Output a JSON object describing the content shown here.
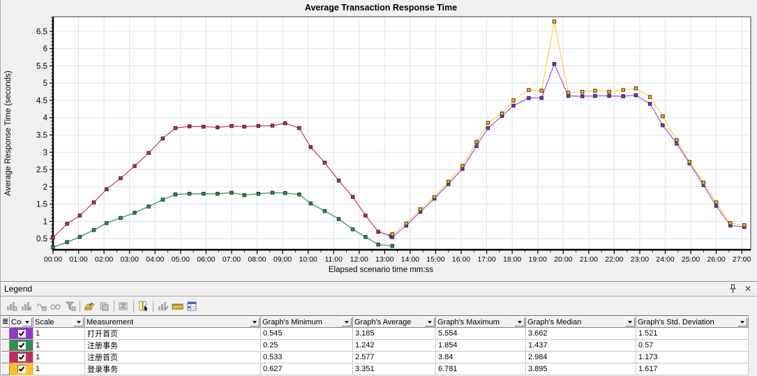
{
  "chart_data": {
    "type": "line",
    "title": "Average Transaction Response Time",
    "xlabel": "Elapsed scenario time mm:ss",
    "ylabel": "Average Response Time (seconds)",
    "grid": true,
    "ylim": [
      0.18,
      6.92
    ],
    "y_ticks": [
      0.5,
      1,
      1.5,
      2,
      2.5,
      3,
      3.5,
      4,
      4.5,
      5,
      5.5,
      6,
      6.5
    ],
    "x_ticks": [
      "00:00",
      "01:00",
      "02:00",
      "03:00",
      "04:00",
      "05:00",
      "06:00",
      "07:00",
      "08:00",
      "09:00",
      "10:00",
      "11:00",
      "12:00",
      "13:00",
      "14:00",
      "15:00",
      "16:00",
      "17:00",
      "18:00",
      "19:00",
      "20:00",
      "21:00",
      "22:00",
      "23:00",
      "24:00",
      "25:00",
      "26:00",
      "27:00"
    ],
    "legend_position": "table-below",
    "series": [
      {
        "name": "打开首页",
        "line_color": "#9a52d6",
        "marker_color": "#8e2fc9",
        "marker_border": "#30104f",
        "x": [
          13.3,
          13.85,
          14.4,
          14.95,
          15.5,
          16.05,
          16.6,
          17.05,
          17.6,
          18.05,
          18.65,
          19.15,
          19.65,
          20.2,
          20.75,
          21.25,
          21.8,
          22.35,
          22.85,
          23.4,
          23.9,
          24.45,
          24.95,
          25.5,
          26.0,
          26.55,
          27.1
        ],
        "y": [
          0.545,
          0.88,
          1.28,
          1.66,
          2.08,
          2.52,
          3.18,
          3.7,
          4.05,
          4.35,
          4.57,
          4.57,
          5.554,
          4.63,
          4.62,
          4.63,
          4.63,
          4.62,
          4.65,
          4.4,
          3.78,
          3.25,
          2.68,
          2.05,
          1.45,
          0.88,
          0.84
        ]
      },
      {
        "name": "注册事务",
        "line_color": "#2e8b57",
        "marker_color": "#2e9153",
        "marker_border": "#083b1d",
        "x": [
          0,
          0.55,
          1.05,
          1.6,
          2.1,
          2.65,
          3.2,
          3.75,
          4.3,
          4.8,
          5.35,
          5.9,
          6.45,
          7.0,
          7.5,
          8.05,
          8.6,
          9.1,
          9.65,
          10.1,
          10.65,
          11.2,
          11.75,
          12.25,
          12.75,
          13.3
        ],
        "y": [
          0.25,
          0.4,
          0.55,
          0.75,
          0.95,
          1.1,
          1.25,
          1.43,
          1.63,
          1.78,
          1.8,
          1.8,
          1.8,
          1.83,
          1.76,
          1.8,
          1.83,
          1.82,
          1.78,
          1.52,
          1.3,
          1.07,
          0.77,
          0.55,
          0.33,
          0.29
        ]
      },
      {
        "name": "注册首页",
        "line_color": "#bb3366",
        "marker_color": "#c62b5e",
        "marker_border": "#47101e",
        "x": [
          0,
          0.55,
          1.05,
          1.6,
          2.1,
          2.65,
          3.2,
          3.75,
          4.3,
          4.8,
          5.35,
          5.9,
          6.45,
          7.0,
          7.5,
          8.05,
          8.6,
          9.1,
          9.65,
          10.1,
          10.65,
          11.2,
          11.75,
          12.25,
          12.75,
          13.25
        ],
        "y": [
          0.533,
          0.93,
          1.17,
          1.55,
          1.93,
          2.25,
          2.6,
          2.98,
          3.4,
          3.7,
          3.75,
          3.74,
          3.72,
          3.76,
          3.74,
          3.76,
          3.77,
          3.84,
          3.7,
          3.15,
          2.7,
          2.18,
          1.71,
          1.17,
          0.7,
          0.58
        ]
      },
      {
        "name": "登录事务",
        "line_color": "#ffcf40",
        "marker_color": "#ffc31e",
        "marker_border": "#3d3000",
        "x": [
          13.3,
          13.85,
          14.4,
          14.95,
          15.5,
          16.05,
          16.6,
          17.05,
          17.6,
          18.05,
          18.65,
          19.15,
          19.65,
          20.2,
          20.75,
          21.25,
          21.8,
          22.35,
          22.85,
          23.4,
          23.9,
          24.45,
          24.95,
          25.5,
          26.0,
          26.55,
          27.1
        ],
        "y": [
          0.627,
          0.94,
          1.35,
          1.7,
          2.15,
          2.6,
          3.3,
          3.85,
          4.12,
          4.5,
          4.8,
          4.78,
          6.781,
          4.72,
          4.75,
          4.78,
          4.75,
          4.8,
          4.85,
          4.6,
          4.04,
          3.35,
          2.72,
          2.12,
          1.55,
          0.95,
          0.89
        ]
      }
    ]
  },
  "legend": {
    "title": "Legend",
    "toolbar": [
      {
        "name": "show-measurement-icon",
        "enabled": false
      },
      {
        "name": "hide-measurement-icon",
        "enabled": false
      },
      {
        "name": "show-only-selected-icon",
        "enabled": false
      },
      {
        "name": "view-measurement-description-icon",
        "enabled": false
      },
      {
        "name": "filter-measurement-icon",
        "enabled": false
      },
      {
        "name": "configure-measurements-icon",
        "enabled": true
      },
      {
        "name": "duplicate-measurement-icon",
        "enabled": false
      },
      {
        "name": "web-page-diagnostics-icon",
        "enabled": false
      },
      {
        "name": "select-columns-icon",
        "enabled": true
      },
      {
        "name": "sort-by-column-icon",
        "enabled": false
      },
      {
        "name": "measurement-ruler-icon",
        "enabled": true
      },
      {
        "name": "legend-window-options-icon",
        "enabled": true
      }
    ],
    "table": {
      "columns": [
        "Col",
        "Scale",
        "Measurement",
        "Graph's Minimum",
        "Graph's Average",
        "Graph's Maximum",
        "Graph's Median",
        "Graph's Std. Deviation"
      ],
      "rows": [
        {
          "color": "#9933cc",
          "checked": true,
          "scale": "1",
          "measurement": "打开首页",
          "min": "0.545",
          "avg": "3.185",
          "max": "5.554",
          "median": "3.662",
          "std": "1.521"
        },
        {
          "color": "#2e9153",
          "checked": true,
          "scale": "1",
          "measurement": "注册事务",
          "min": "0.25",
          "avg": "1.242",
          "max": "1.854",
          "median": "1.437",
          "std": "0.57"
        },
        {
          "color": "#c62b5e",
          "checked": true,
          "scale": "1",
          "measurement": "注册首页",
          "min": "0.533",
          "avg": "2.577",
          "max": "3.84",
          "median": "2.984",
          "std": "1.173"
        },
        {
          "color": "#ffc31e",
          "checked": true,
          "scale": "1",
          "measurement": "登录事务",
          "min": "0.627",
          "avg": "3.351",
          "max": "6.781",
          "median": "3.895",
          "std": "1.617"
        }
      ]
    }
  }
}
